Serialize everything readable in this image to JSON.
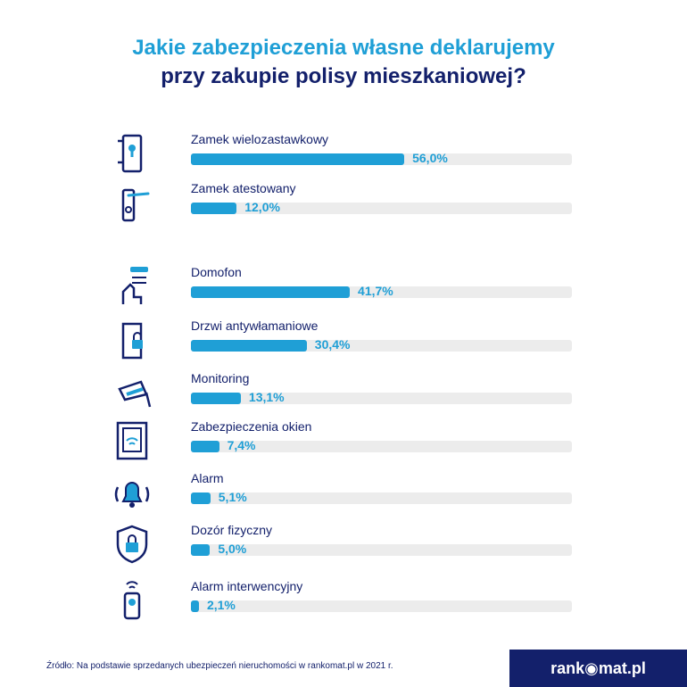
{
  "title": {
    "line1": "Jakie zabezpieczenia własne deklarujemy",
    "line2": "przy zakupie polisy mieszkaniowej?"
  },
  "chart_data": {
    "type": "bar",
    "orientation": "horizontal",
    "categories": [
      "Zamek wielozastawkowy",
      "Zamek atestowany",
      "Domofon",
      "Drzwi antywłamaniowe",
      "Monitoring",
      "Zabezpieczenia okien",
      "Alarm",
      "Dozór fizyczny",
      "Alarm interwencyjny"
    ],
    "values": [
      56.0,
      12.0,
      41.7,
      30.4,
      13.1,
      7.4,
      5.1,
      5.0,
      2.1
    ],
    "value_labels": [
      "56,0%",
      "12,0%",
      "41,7%",
      "30,4%",
      "13,1%",
      "7,4%",
      "5,1%",
      "5,0%",
      "2,1%"
    ],
    "icons": [
      "door-lock-icon",
      "door-handle-icon",
      "intercom-icon",
      "security-door-icon",
      "cctv-camera-icon",
      "window-icon",
      "alarm-bell-icon",
      "shield-lock-icon",
      "panic-button-icon"
    ],
    "xlim": [
      0,
      100
    ],
    "grid": false,
    "colors": {
      "bar": "#1f9fd6",
      "track": "#ececec",
      "label": "#13206b"
    }
  },
  "footer": {
    "source": "Źródło: Na podstawie sprzedanych ubezpieczeń nieruchomości w rankomat.pl w 2021 r."
  },
  "logo": {
    "text": "rank◉mat.pl"
  }
}
